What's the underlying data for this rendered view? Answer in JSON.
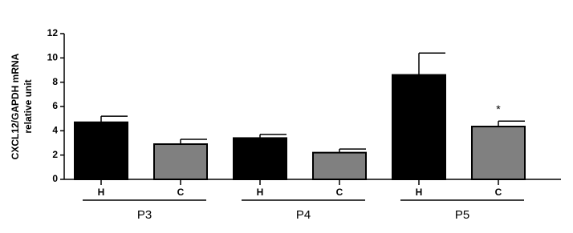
{
  "chart_data": {
    "type": "bar",
    "ylabel": [
      "CXCL12/GAPDH mRNA",
      "relative unit"
    ],
    "categories": [
      "H",
      "C",
      "H",
      "C",
      "H",
      "C"
    ],
    "groups": [
      "P3",
      "P4",
      "P5"
    ],
    "values": [
      4.7,
      2.9,
      3.4,
      2.2,
      8.6,
      4.35
    ],
    "errors": [
      0.5,
      0.4,
      0.3,
      0.3,
      1.8,
      0.45
    ],
    "value_annotations": [
      null,
      null,
      null,
      null,
      null,
      "*"
    ],
    "colors": [
      "#000000",
      "#808080",
      "#000000",
      "#808080",
      "#000000",
      "#808080"
    ],
    "ylim": [
      0,
      12
    ],
    "yticks": [
      0,
      2,
      4,
      6,
      8,
      10,
      12
    ]
  }
}
